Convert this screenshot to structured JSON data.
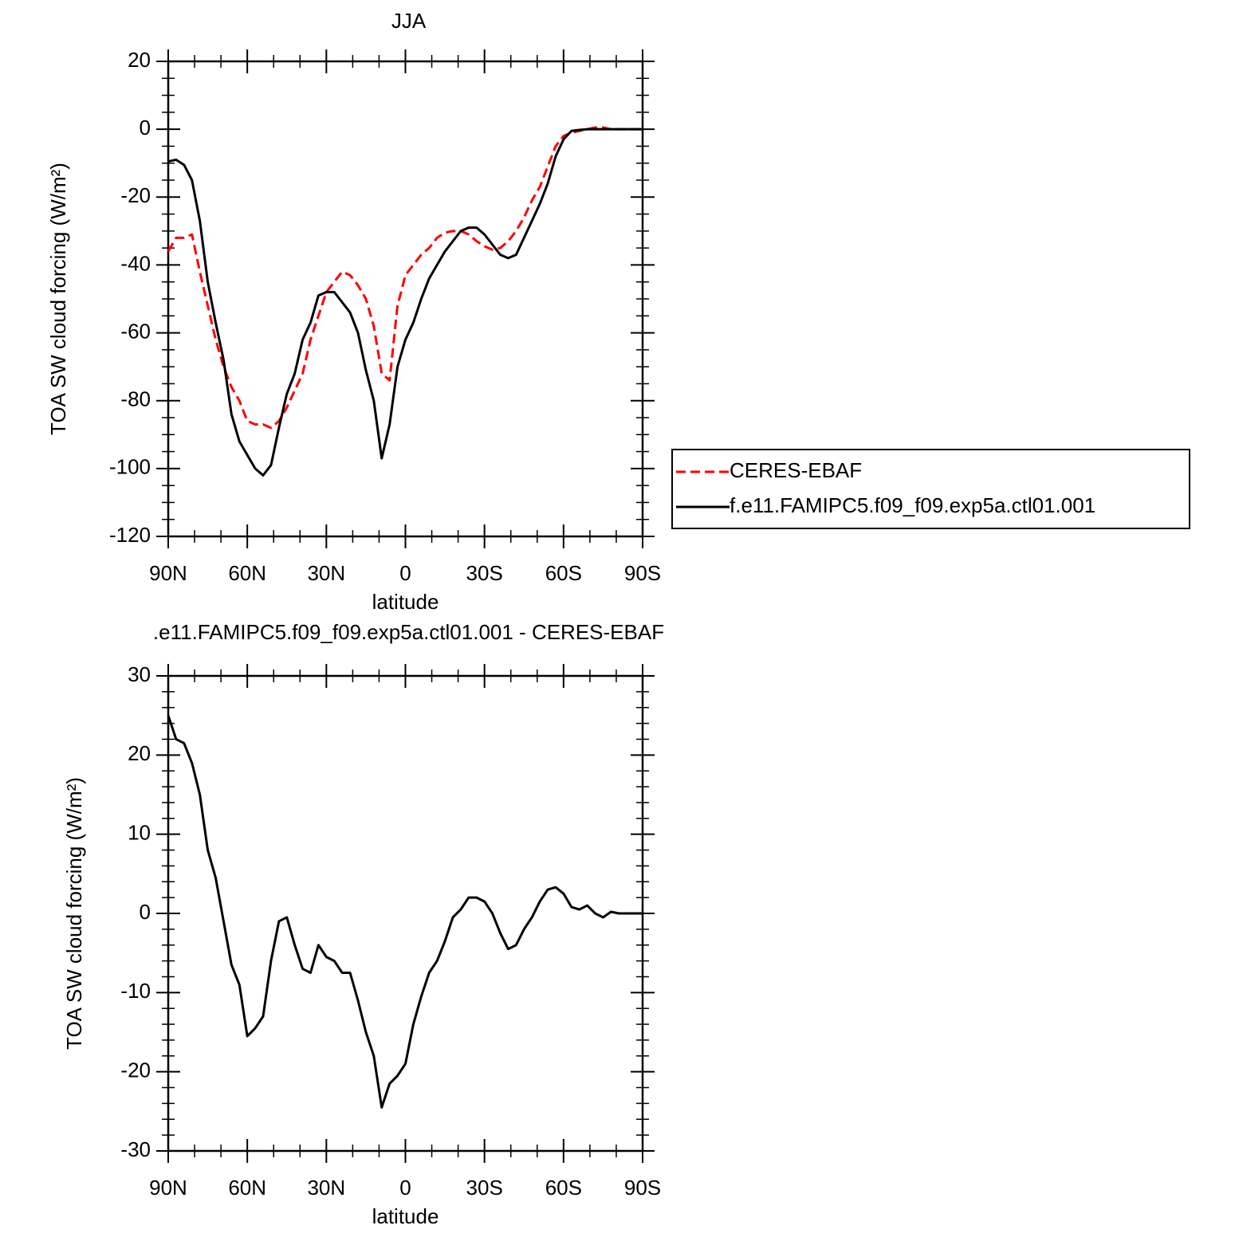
{
  "chart_data": [
    {
      "type": "line",
      "title": "JJA",
      "xlabel": "latitude",
      "ylabel": "TOA SW cloud forcing (W/m²)",
      "x": [
        90,
        87,
        84,
        81,
        78,
        75,
        72,
        69,
        66,
        63,
        60,
        57,
        54,
        51,
        48,
        45,
        42,
        39,
        36,
        33,
        30,
        27,
        24,
        21,
        18,
        15,
        12,
        9,
        6,
        3,
        0,
        -3,
        -6,
        -9,
        -12,
        -15,
        -18,
        -21,
        -24,
        -27,
        -30,
        -33,
        -36,
        -39,
        -42,
        -45,
        -48,
        -51,
        -54,
        -57,
        -60,
        -63,
        -66,
        -69,
        -72,
        -75,
        -78,
        -81,
        -84,
        -87,
        -90
      ],
      "xlim": [
        90,
        -90
      ],
      "xticks": [
        {
          "value": 90,
          "label": "90N"
        },
        {
          "value": 60,
          "label": "60N"
        },
        {
          "value": 30,
          "label": "30N"
        },
        0,
        {
          "value": -30,
          "label": "30S"
        },
        {
          "value": -60,
          "label": "60S"
        },
        {
          "value": -90,
          "label": "90S"
        }
      ],
      "xminorticks": [
        80,
        70,
        50,
        40,
        20,
        10,
        -10,
        -20,
        -40,
        -50,
        -70,
        -80
      ],
      "ylim": [
        -120,
        20
      ],
      "yticks": [
        -120,
        -100,
        -80,
        -60,
        -40,
        -20,
        0,
        20
      ],
      "yminorticks": [
        -115,
        -110,
        -105,
        -95,
        -90,
        -85,
        -75,
        -70,
        -65,
        -55,
        -50,
        -45,
        -35,
        -30,
        -25,
        -15,
        -10,
        -5,
        5,
        10,
        15
      ],
      "legend": "right",
      "series": [
        {
          "name": "CERES-EBAF",
          "color": "#ff0000",
          "line_style": "dashed",
          "values": [
            -36,
            -32,
            -32,
            -31,
            -42,
            -52,
            -62,
            -70,
            -76,
            -80,
            -86,
            -87,
            -87,
            -88,
            -86,
            -82,
            -77,
            -72,
            -62,
            -55,
            -48,
            -45,
            -42,
            -43,
            -46,
            -50,
            -58,
            -72,
            -74,
            -52,
            -43,
            -40,
            -37,
            -35,
            -32,
            -30.5,
            -30,
            -30,
            -31,
            -33,
            -34.5,
            -35.5,
            -35,
            -33,
            -30,
            -26,
            -21,
            -17,
            -11,
            -5,
            -2,
            -1,
            -0.5,
            0,
            0.5,
            0.5,
            0,
            0,
            0,
            0,
            0
          ]
        },
        {
          "name": "f.e11.FAMIPC5.f09_f09.exp5a.ctl01.001",
          "color": "#000000",
          "line_style": "solid",
          "values": [
            -9.5,
            -9,
            -10.5,
            -15,
            -27,
            -45,
            -57,
            -68,
            -84,
            -92,
            -96,
            -100,
            -102,
            -99,
            -88,
            -78,
            -72,
            -62,
            -57,
            -49,
            -48,
            -48,
            -51,
            -54,
            -60,
            -71,
            -80,
            -97,
            -87,
            -70,
            -62,
            -57,
            -50,
            -44,
            -40,
            -36,
            -33,
            -30,
            -29,
            -29,
            -31,
            -34,
            -37,
            -38,
            -37,
            -32,
            -27,
            -22,
            -16,
            -8,
            -3,
            -0.5,
            -0.2,
            0,
            0,
            0,
            0,
            0,
            0,
            0,
            0
          ]
        }
      ]
    },
    {
      "type": "line",
      "title": ".e11.FAMIPC5.f09_f09.exp5a.ctl01.001 - CERES-EBAF",
      "xlabel": "latitude",
      "ylabel": "TOA SW cloud forcing (W/m²)",
      "x": [
        90,
        87,
        84,
        81,
        78,
        75,
        72,
        69,
        66,
        63,
        60,
        57,
        54,
        51,
        48,
        45,
        42,
        39,
        36,
        33,
        30,
        27,
        24,
        21,
        18,
        15,
        12,
        9,
        6,
        3,
        0,
        -3,
        -6,
        -9,
        -12,
        -15,
        -18,
        -21,
        -24,
        -27,
        -30,
        -33,
        -36,
        -39,
        -42,
        -45,
        -48,
        -51,
        -54,
        -57,
        -60,
        -63,
        -66,
        -69,
        -72,
        -75,
        -78,
        -81,
        -84,
        -87,
        -90
      ],
      "xlim": [
        90,
        -90
      ],
      "xticks": [
        {
          "value": 90,
          "label": "90N"
        },
        {
          "value": 60,
          "label": "60N"
        },
        {
          "value": 30,
          "label": "30N"
        },
        0,
        {
          "value": -30,
          "label": "30S"
        },
        {
          "value": -60,
          "label": "60S"
        },
        {
          "value": -90,
          "label": "90S"
        }
      ],
      "xminorticks": [
        80,
        70,
        50,
        40,
        20,
        10,
        -10,
        -20,
        -40,
        -50,
        -70,
        -80
      ],
      "ylim": [
        -30,
        30
      ],
      "yticks": [
        -30,
        -20,
        -10,
        0,
        10,
        20,
        30
      ],
      "yminorticks": [
        -28,
        -26,
        -24,
        -22,
        -18,
        -16,
        -14,
        -12,
        -8,
        -6,
        -4,
        -2,
        2,
        4,
        6,
        8,
        12,
        14,
        16,
        18,
        22,
        24,
        26,
        28
      ],
      "series": [
        {
          "color": "#000000",
          "line_style": "solid",
          "values": [
            25,
            22,
            21.5,
            19,
            15,
            8,
            4.5,
            -1,
            -6.5,
            -9,
            -15.5,
            -14.5,
            -13,
            -6,
            -1,
            -0.5,
            -4,
            -7,
            -7.5,
            -4,
            -5.5,
            -6,
            -7.5,
            -7.5,
            -11,
            -15,
            -18,
            -24.5,
            -21.5,
            -20.5,
            -19,
            -14,
            -10.5,
            -7.5,
            -6,
            -3.5,
            -0.5,
            0.5,
            2,
            2,
            1.5,
            0,
            -2.5,
            -4.5,
            -4,
            -2,
            -0.5,
            1.5,
            3,
            3.3,
            2.5,
            0.8,
            0.5,
            1,
            0,
            -0.5,
            0.2,
            0,
            0,
            0,
            0
          ]
        }
      ]
    }
  ]
}
